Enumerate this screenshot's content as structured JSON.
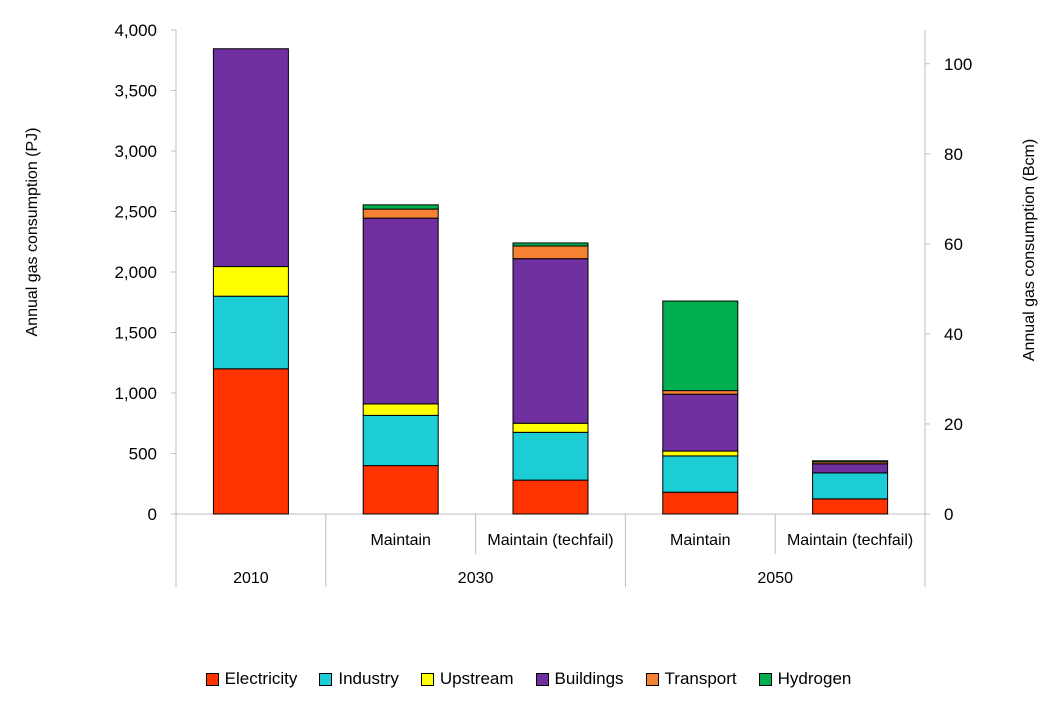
{
  "chart_data": {
    "type": "bar",
    "stacked": true,
    "categories": [
      "2010",
      "2030 Maintain",
      "2030 Maintain (techfail)",
      "2050 Maintain",
      "2050 Maintain (techfail)"
    ],
    "category_labels": [
      "",
      "Maintain",
      "Maintain (techfail)",
      "Maintain",
      "Maintain (techfail)"
    ],
    "groups": [
      {
        "label": "2010",
        "categories": [
          0
        ]
      },
      {
        "label": "2030",
        "categories": [
          1,
          2
        ]
      },
      {
        "label": "2050",
        "categories": [
          3,
          4
        ]
      }
    ],
    "series": [
      {
        "name": "Electricity",
        "color": "#ff3300",
        "values": [
          1200,
          400,
          280,
          180,
          125
        ]
      },
      {
        "name": "Industry",
        "color": "#1ccdd6",
        "values": [
          600,
          415,
          395,
          300,
          215
        ]
      },
      {
        "name": "Upstream",
        "color": "#ffff00",
        "values": [
          245,
          95,
          75,
          40,
          0
        ]
      },
      {
        "name": "Buildings",
        "color": "#7030a0",
        "values": [
          1800,
          1535,
          1360,
          470,
          75
        ]
      },
      {
        "name": "Transport",
        "color": "#f58233",
        "values": [
          0,
          75,
          105,
          30,
          15
        ]
      },
      {
        "name": "Hydrogen",
        "color": "#00b050",
        "values": [
          0,
          35,
          25,
          740,
          10
        ]
      }
    ],
    "ylabel": "Annual gas consumption (PJ)",
    "ylim": [
      0,
      4000
    ],
    "yticks": [
      "0",
      "500",
      "1,000",
      "1,500",
      "2,000",
      "2,500",
      "3,000",
      "3,500",
      "4,000"
    ],
    "y2label": "Annual gas consumption (Bcm)",
    "y2lim": [
      0,
      107.5
    ],
    "y2ticks": [
      "0",
      "20",
      "40",
      "60",
      "80",
      "100"
    ],
    "grid": false,
    "legend_position": "bottom"
  }
}
